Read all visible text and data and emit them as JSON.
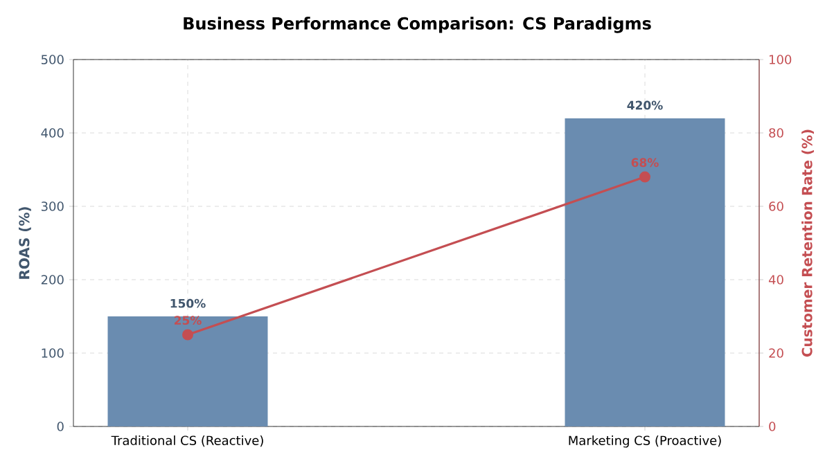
{
  "chart_data": {
    "type": "bar",
    "title": "Business Performance Comparison: CS Paradigms",
    "ylabel": "ROAS (%)",
    "y2label": "Customer Retention Rate (%)",
    "categories": [
      "Traditional CS (Reactive)",
      "Marketing CS (Proactive)"
    ],
    "series": [
      {
        "color": "#6a8cb0",
        "values": [
          150,
          420
        ],
        "value_labels": [
          "150%",
          "420%"
        ]
      },
      {
        "type": "line",
        "axis": "y2",
        "color": "#c44e52",
        "values": [
          25,
          68
        ],
        "value_labels": [
          "25%",
          "68%"
        ],
        "marker": "circle",
        "line_style": "solid"
      }
    ],
    "ylim": [
      0,
      500
    ],
    "yticks": [
      0,
      100,
      200,
      300,
      400,
      500
    ],
    "y2lim": [
      0,
      100
    ],
    "y2ticks": [
      0,
      20,
      40,
      60,
      80,
      100
    ],
    "grid": true
  }
}
